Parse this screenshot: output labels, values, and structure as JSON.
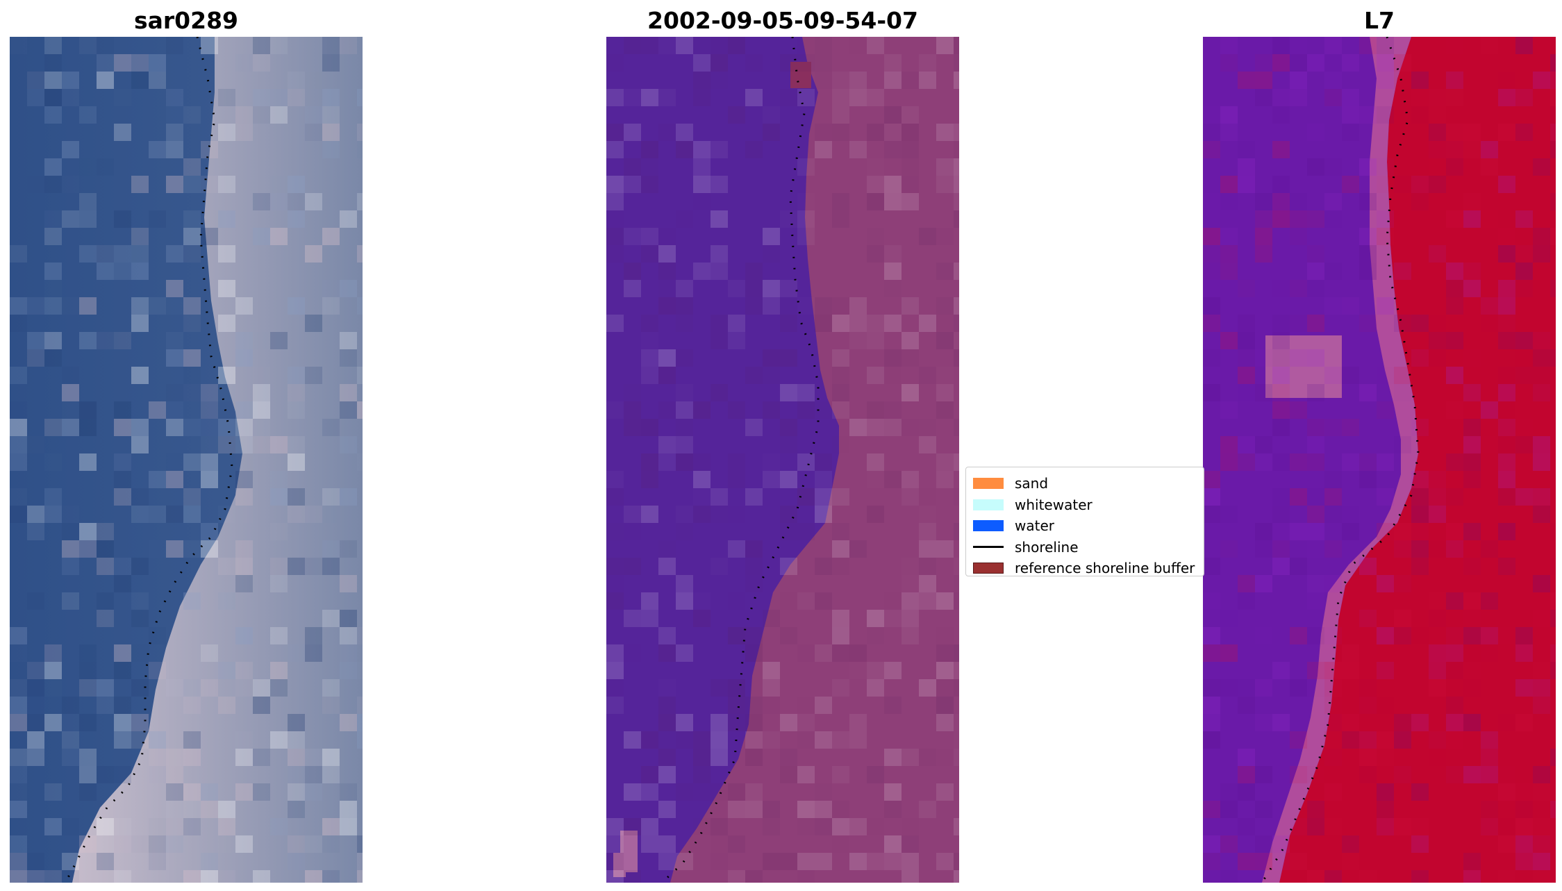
{
  "panels": {
    "left_title": "sar0289",
    "center_title": "2002-09-05-09-54-07",
    "right_title": "L7"
  },
  "legend": {
    "items": [
      {
        "label": "sand",
        "type": "patch",
        "color": "#ff8c3f"
      },
      {
        "label": "whitewater",
        "type": "patch",
        "color": "#c6fcfc"
      },
      {
        "label": "water",
        "type": "patch",
        "color": "#0d5cff"
      },
      {
        "label": "shoreline",
        "type": "line",
        "color": "#000000"
      },
      {
        "label": "reference shoreline buffer",
        "type": "patch",
        "color": "#9a3030"
      }
    ]
  },
  "colors": {
    "rgb_water": "#3b5a8e",
    "rgb_land": "#b7b7c8",
    "class_water": "#55249a",
    "class_land": "#8e3f78",
    "mndwi_water": "#6a1aa8",
    "mndwi_land": "#c2052f",
    "shoreline_dots": "#000000"
  }
}
